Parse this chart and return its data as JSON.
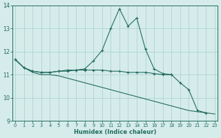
{
  "xlabel": "Humidex (Indice chaleur)",
  "x_values": [
    0,
    1,
    2,
    3,
    4,
    5,
    6,
    7,
    8,
    9,
    10,
    11,
    12,
    13,
    14,
    15,
    16,
    17,
    18,
    19,
    20,
    21,
    22,
    23
  ],
  "line_peaked_y": [
    11.65,
    11.3,
    11.15,
    11.1,
    11.1,
    11.15,
    11.2,
    11.2,
    11.25,
    11.6,
    12.05,
    13.0,
    13.85,
    13.1,
    13.45,
    12.1,
    11.25,
    11.05,
    11.0,
    10.65,
    10.35,
    9.45,
    9.35,
    null
  ],
  "line_flat_y": [
    11.65,
    11.3,
    11.15,
    11.1,
    11.1,
    11.15,
    11.15,
    11.2,
    11.2,
    11.2,
    11.2,
    11.15,
    11.15,
    11.1,
    11.1,
    11.1,
    11.05,
    11.0,
    11.0,
    null,
    null,
    null,
    null,
    null
  ],
  "line_decline_y": [
    11.65,
    11.3,
    11.1,
    11.0,
    11.0,
    10.95,
    10.85,
    10.75,
    10.65,
    10.55,
    10.45,
    10.35,
    10.25,
    10.15,
    10.05,
    9.95,
    9.85,
    9.75,
    9.65,
    9.55,
    9.45,
    9.4,
    9.35,
    9.3
  ],
  "line_color": "#236b5e",
  "background_color": "#d5eceb",
  "grid_color": "#aed4d0",
  "ylim": [
    9.0,
    14.0
  ],
  "xlim_min": -0.3,
  "xlim_max": 23.3,
  "yticks": [
    9,
    10,
    11,
    12,
    13,
    14
  ],
  "xticks": [
    0,
    1,
    2,
    3,
    4,
    5,
    6,
    7,
    8,
    9,
    10,
    11,
    12,
    13,
    14,
    15,
    16,
    17,
    18,
    19,
    20,
    21,
    22,
    23
  ]
}
